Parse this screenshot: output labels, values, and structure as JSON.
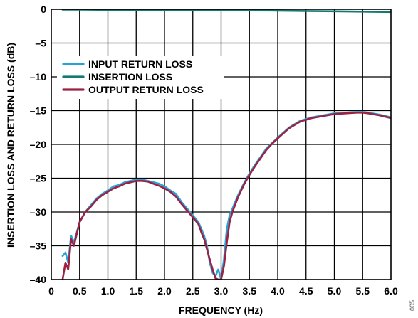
{
  "chart_data": {
    "type": "line",
    "xlabel": "FREQUENCY (Hz)",
    "ylabel": "INSERTION LOSS AND RETURN LOSS (dB)",
    "xlim": [
      0,
      6.0
    ],
    "ylim": [
      -40,
      0
    ],
    "x_ticks": [
      "0",
      "0.5",
      "1.0",
      "1.5",
      "2.0",
      "2.5",
      "3.0",
      "3.5",
      "4.0",
      "4.5",
      "5.0",
      "5.5",
      "6.0"
    ],
    "y_ticks": [
      "0",
      "–5",
      "–10",
      "–15",
      "–20",
      "–25",
      "–30",
      "–35",
      "–40"
    ],
    "grid": true,
    "legend_position": "top-left",
    "figure_code": "005",
    "series": [
      {
        "name": "INPUT RETURN LOSS",
        "color": "#29a3d6",
        "x": [
          0.2,
          0.25,
          0.3,
          0.35,
          0.4,
          0.5,
          0.6,
          0.7,
          0.8,
          0.9,
          1.0,
          1.1,
          1.2,
          1.3,
          1.4,
          1.5,
          1.6,
          1.7,
          1.8,
          1.9,
          2.0,
          2.1,
          2.2,
          2.3,
          2.4,
          2.5,
          2.6,
          2.65,
          2.7,
          2.75,
          2.8,
          2.85,
          2.9,
          2.95,
          3.0,
          3.05,
          3.1,
          3.15,
          3.2,
          3.3,
          3.4,
          3.5,
          3.6,
          3.7,
          3.8,
          3.9,
          4.0,
          4.2,
          4.4,
          4.6,
          4.8,
          5.0,
          5.2,
          5.4,
          5.5,
          5.6,
          5.8,
          6.0
        ],
        "y": [
          -36.5,
          -36.0,
          -37.5,
          -33.5,
          -34.5,
          -31.5,
          -30.0,
          -29.0,
          -28.0,
          -27.3,
          -26.8,
          -26.2,
          -26.0,
          -25.6,
          -25.4,
          -25.2,
          -25.2,
          -25.4,
          -25.6,
          -25.8,
          -26.2,
          -26.8,
          -27.3,
          -28.5,
          -29.5,
          -30.5,
          -31.5,
          -32.5,
          -33.5,
          -35.0,
          -37.5,
          -39.0,
          -39.5,
          -38.5,
          -40.0,
          -37.0,
          -32.5,
          -30.5,
          -29.5,
          -27.5,
          -25.8,
          -24.3,
          -23.0,
          -21.8,
          -20.6,
          -19.8,
          -19.0,
          -17.5,
          -16.5,
          -16.0,
          -15.7,
          -15.4,
          -15.3,
          -15.2,
          -15.2,
          -15.3,
          -15.6,
          -16.0
        ]
      },
      {
        "name": "INSERTION LOSS",
        "color": "#137a72",
        "x": [
          0.2,
          0.5,
          1.0,
          1.5,
          2.0,
          2.5,
          3.0,
          3.5,
          4.0,
          4.5,
          5.0,
          5.5,
          6.0
        ],
        "y": [
          -0.05,
          -0.05,
          -0.08,
          -0.1,
          -0.12,
          -0.13,
          -0.15,
          -0.18,
          -0.2,
          -0.25,
          -0.3,
          -0.35,
          -0.4
        ]
      },
      {
        "name": "OUTPUT RETURN LOSS",
        "color": "#9c2142",
        "x": [
          0.2,
          0.25,
          0.3,
          0.35,
          0.4,
          0.5,
          0.6,
          0.7,
          0.8,
          0.9,
          1.0,
          1.1,
          1.2,
          1.3,
          1.4,
          1.5,
          1.6,
          1.7,
          1.8,
          1.9,
          2.0,
          2.1,
          2.2,
          2.3,
          2.4,
          2.5,
          2.6,
          2.65,
          2.7,
          2.75,
          2.8,
          2.85,
          2.9,
          2.95,
          3.0,
          3.05,
          3.1,
          3.15,
          3.2,
          3.3,
          3.4,
          3.5,
          3.6,
          3.7,
          3.8,
          3.9,
          4.0,
          4.2,
          4.4,
          4.6,
          4.8,
          5.0,
          5.2,
          5.4,
          5.5,
          5.6,
          5.8,
          6.0
        ],
        "y": [
          -40.0,
          -37.5,
          -38.5,
          -34.0,
          -35.0,
          -31.5,
          -30.0,
          -29.2,
          -28.2,
          -27.5,
          -27.0,
          -26.5,
          -26.2,
          -25.8,
          -25.6,
          -25.4,
          -25.4,
          -25.5,
          -25.8,
          -26.1,
          -26.5,
          -27.0,
          -27.7,
          -28.8,
          -29.8,
          -30.8,
          -31.8,
          -33.0,
          -34.0,
          -35.5,
          -37.0,
          -38.5,
          -39.8,
          -40.0,
          -40.0,
          -38.0,
          -34.5,
          -31.5,
          -30.0,
          -27.8,
          -26.0,
          -24.5,
          -23.2,
          -22.0,
          -20.8,
          -19.9,
          -19.1,
          -17.6,
          -16.6,
          -16.1,
          -15.8,
          -15.5,
          -15.4,
          -15.3,
          -15.3,
          -15.4,
          -15.7,
          -16.1
        ]
      }
    ]
  }
}
